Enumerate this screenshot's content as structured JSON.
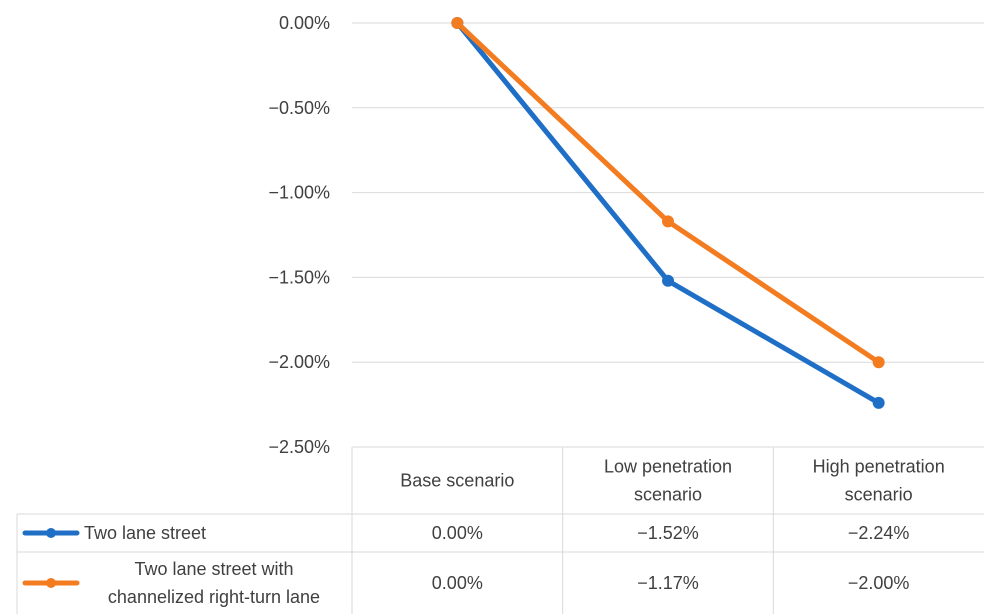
{
  "chart_data": {
    "type": "line",
    "categories": [
      "Base scenario",
      "Low penetration scenario",
      "High penetration scenario"
    ],
    "category_lines": [
      [
        "Base scenario"
      ],
      [
        "Low penetration",
        "scenario"
      ],
      [
        "High penetration",
        "scenario"
      ]
    ],
    "series": [
      {
        "name": "Two lane street",
        "name_lines": [
          "Two lane street"
        ],
        "values": [
          0.0,
          -1.52,
          -2.24
        ],
        "labels": [
          "0.00%",
          "−1.52%",
          "−2.24%"
        ],
        "color": "#1f6fc6"
      },
      {
        "name": "Two lane street with channelized right-turn lane",
        "name_lines": [
          "Two lane street with",
          "channelized right-turn lane"
        ],
        "values": [
          0.0,
          -1.17,
          -2.0
        ],
        "labels": [
          "0.00%",
          "−1.17%",
          "−2.00%"
        ],
        "color": "#f47c20"
      }
    ],
    "yticks": [
      0.0,
      -0.5,
      -1.0,
      -1.5,
      -2.0,
      -2.5
    ],
    "ytick_labels": [
      "0.00%",
      "−0.50%",
      "−1.00%",
      "−1.50%",
      "−2.00%",
      "−2.50%"
    ],
    "ylim": [
      -2.5,
      0.0
    ],
    "grid": true,
    "legend": "data-table"
  }
}
